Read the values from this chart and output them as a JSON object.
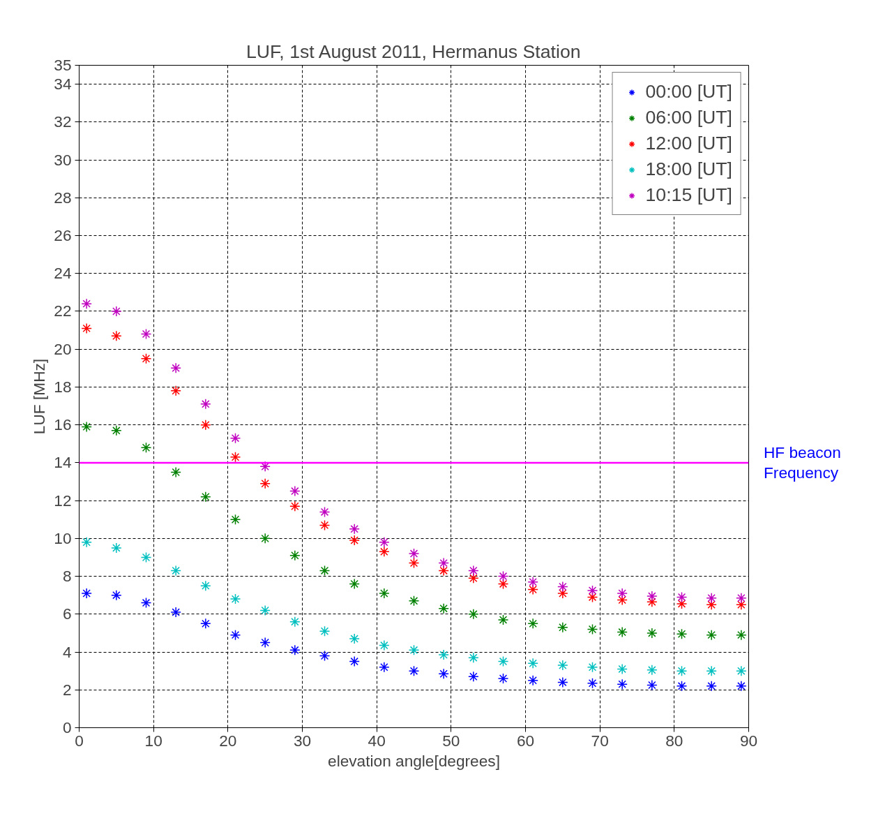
{
  "chart_data": {
    "type": "scatter",
    "title": "LUF, 1st August 2011, Hermanus Station",
    "xlabel": "elevation angle[degrees]",
    "ylabel": "LUF [MHz]",
    "x": [
      1,
      5,
      9,
      13,
      17,
      21,
      25,
      29,
      33,
      37,
      41,
      45,
      49,
      53,
      57,
      61,
      65,
      69,
      73,
      77,
      81,
      85,
      89
    ],
    "series": [
      {
        "name": "00:00 [UT]",
        "color": "#0000ff",
        "values": [
          7.1,
          7.0,
          6.6,
          6.1,
          5.5,
          4.9,
          4.5,
          4.1,
          3.8,
          3.5,
          3.2,
          3.0,
          2.85,
          2.7,
          2.6,
          2.5,
          2.4,
          2.35,
          2.3,
          2.25,
          2.2,
          2.2,
          2.2
        ]
      },
      {
        "name": "06:00 [UT]",
        "color": "#008000",
        "values": [
          15.9,
          15.7,
          14.8,
          13.5,
          12.2,
          11.0,
          10.0,
          9.1,
          8.3,
          7.6,
          7.1,
          6.7,
          6.3,
          6.0,
          5.7,
          5.5,
          5.3,
          5.2,
          5.05,
          5.0,
          4.95,
          4.9,
          4.9
        ]
      },
      {
        "name": "12:00 [UT]",
        "color": "#ff0000",
        "values": [
          21.1,
          20.7,
          19.5,
          17.8,
          16.0,
          14.3,
          12.9,
          11.7,
          10.7,
          9.9,
          9.3,
          8.7,
          8.3,
          7.9,
          7.6,
          7.3,
          7.1,
          6.9,
          6.75,
          6.65,
          6.55,
          6.5,
          6.5
        ]
      },
      {
        "name": "18:00 [UT]",
        "color": "#00bfbf",
        "values": [
          9.8,
          9.5,
          9.0,
          8.3,
          7.5,
          6.8,
          6.2,
          5.6,
          5.1,
          4.7,
          4.35,
          4.1,
          3.85,
          3.7,
          3.5,
          3.4,
          3.3,
          3.2,
          3.1,
          3.05,
          3.0,
          3.0,
          3.0
        ]
      },
      {
        "name": "10:15 [UT]",
        "color": "#bf00bf",
        "values": [
          22.4,
          22.0,
          20.8,
          19.0,
          17.1,
          15.3,
          13.8,
          12.5,
          11.4,
          10.5,
          9.8,
          9.2,
          8.7,
          8.3,
          8.0,
          7.7,
          7.45,
          7.25,
          7.1,
          6.95,
          6.9,
          6.85,
          6.85
        ]
      }
    ],
    "xlim": [
      0,
      90
    ],
    "xticks": [
      0,
      10,
      20,
      30,
      40,
      50,
      60,
      70,
      80,
      90
    ],
    "ylim": [
      0,
      35
    ],
    "yticks": [
      0,
      2,
      4,
      6,
      8,
      10,
      12,
      14,
      16,
      18,
      20,
      22,
      24,
      26,
      28,
      30,
      32,
      34,
      35
    ],
    "ref_lines": [
      {
        "axis": "y",
        "value": 14,
        "label": "HF beacon\nFrequency",
        "color": "#ff00ff"
      }
    ],
    "grid": true,
    "legend": "top right",
    "marker": "cross"
  }
}
